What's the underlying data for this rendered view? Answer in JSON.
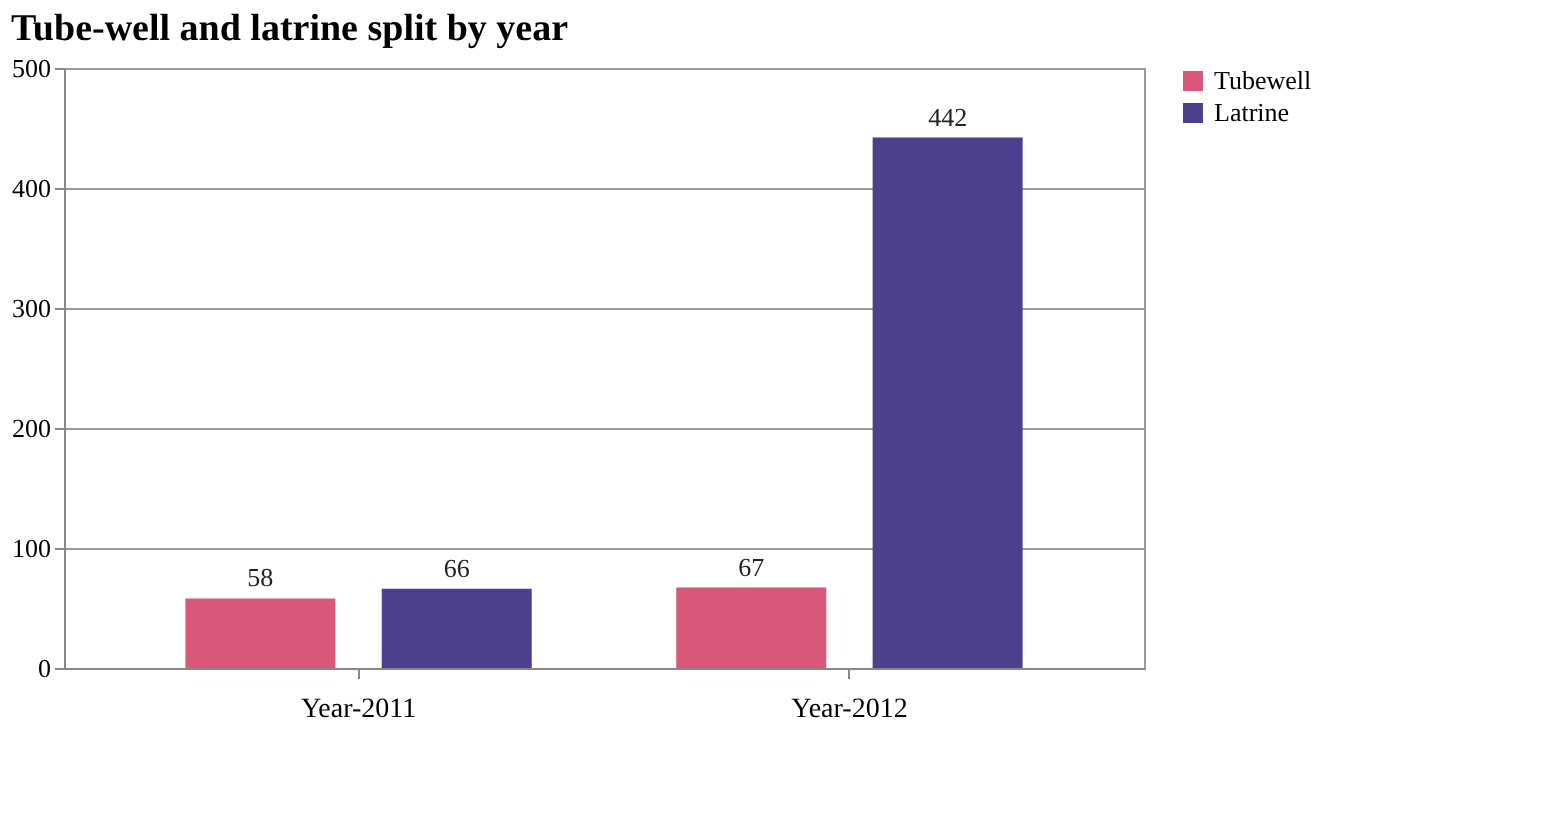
{
  "chart_data": {
    "type": "bar",
    "title": "Tube-well and latrine split by year",
    "categories": [
      "Year-2011",
      "Year-2012"
    ],
    "series": [
      {
        "name": "Tubewell",
        "color": "#d9587a",
        "values": [
          58,
          67
        ]
      },
      {
        "name": "Latrine",
        "color": "#4b3f8e",
        "values": [
          66,
          442
        ]
      }
    ],
    "ylim": [
      0,
      500
    ],
    "yticks": [
      0,
      100,
      200,
      300,
      400,
      500
    ],
    "grid": "y",
    "legend": "right",
    "data_labels": true
  }
}
